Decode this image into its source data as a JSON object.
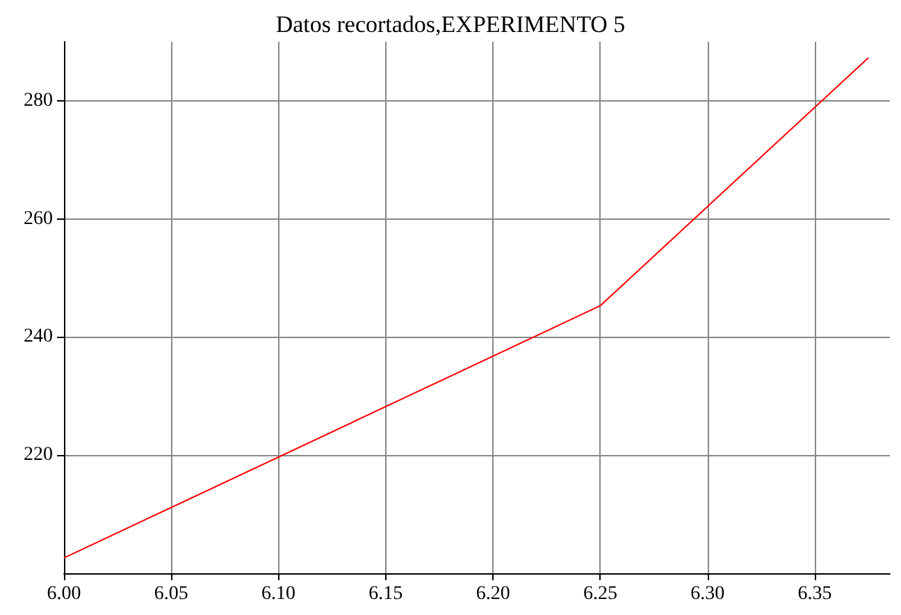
{
  "chart_data": {
    "type": "line",
    "title": "Datos recortados,EXPERIMENTO 5",
    "series": [
      {
        "color": "#ff0000",
        "x": [
          6.0,
          6.25,
          6.375
        ],
        "values": [
          202.6,
          245.3,
          287.3
        ]
      }
    ],
    "xlim": [
      6.0,
      6.385
    ],
    "xticks": [
      {
        "value": 6.0,
        "label": "6.00"
      },
      {
        "value": 6.05,
        "label": "6.05"
      },
      {
        "value": 6.1,
        "label": "6.10"
      },
      {
        "value": 6.15,
        "label": "6.15"
      },
      {
        "value": 6.2,
        "label": "6.20"
      },
      {
        "value": 6.25,
        "label": "6.25"
      },
      {
        "value": 6.3,
        "label": "6.30"
      },
      {
        "value": 6.35,
        "label": "6.35"
      }
    ],
    "ylim": [
      200,
      290
    ],
    "yticks": [
      220,
      240,
      260,
      280
    ],
    "grid": true,
    "marker": "none",
    "line_style": "solid"
  }
}
